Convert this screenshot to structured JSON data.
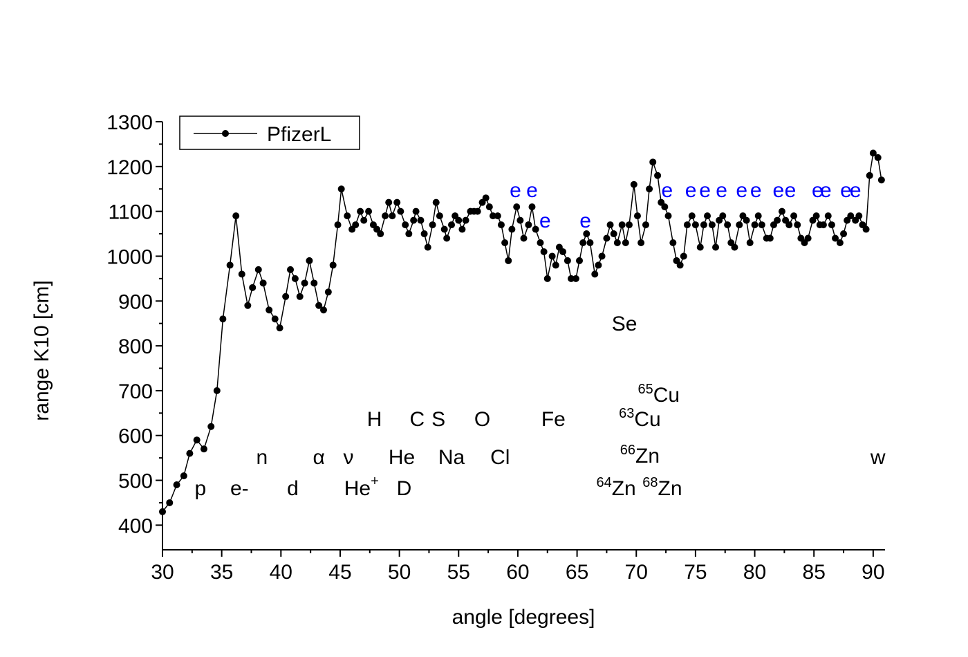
{
  "chart_data": {
    "type": "line",
    "x_label": "angle [degrees]",
    "y_label": "range K10 [cm]",
    "xlim": [
      30,
      91
    ],
    "ylim": [
      345,
      1300
    ],
    "xticks": [
      30,
      35,
      40,
      45,
      50,
      55,
      60,
      65,
      70,
      75,
      80,
      85,
      90
    ],
    "yticks": [
      400,
      500,
      600,
      700,
      800,
      900,
      1000,
      1100,
      1200,
      1300
    ],
    "xminorticks": [
      32.5,
      37.5,
      42.5,
      47.5,
      52.5,
      57.5,
      62.5,
      67.5,
      72.5,
      77.5,
      82.5,
      87.5
    ],
    "yminorticks": [
      450,
      550,
      650,
      750,
      850,
      950,
      1050,
      1150,
      1250
    ],
    "legend": "top-left",
    "x": [
      30,
      30.6,
      31.2,
      31.8,
      32.3,
      32.9,
      33.5,
      34.1,
      34.6,
      35.1,
      35.7,
      36.2,
      36.7,
      37.2,
      37.6,
      38.1,
      38.5,
      39,
      39.5,
      39.9,
      40.4,
      40.8,
      41.2,
      41.6,
      42,
      42.4,
      42.8,
      43.2,
      43.6,
      44,
      44.4,
      44.8,
      45.1,
      45.6,
      46,
      46.3,
      46.7,
      47,
      47.4,
      47.8,
      48.1,
      48.4,
      48.8,
      49.1,
      49.4,
      49.8,
      50.1,
      50.5,
      50.8,
      51.2,
      51.4,
      51.8,
      52.1,
      52.4,
      52.8,
      53.1,
      53.4,
      53.8,
      54,
      54.4,
      54.7,
      55,
      55.3,
      55.6,
      56,
      56.3,
      56.6,
      57,
      57.3,
      57.6,
      57.9,
      58.3,
      58.6,
      58.9,
      59.2,
      59.5,
      59.9,
      60.2,
      60.5,
      60.9,
      61.2,
      61.5,
      61.9,
      62.2,
      62.5,
      62.9,
      63.2,
      63.5,
      63.8,
      64.2,
      64.5,
      64.9,
      65.2,
      65.5,
      65.8,
      66.1,
      66.5,
      66.8,
      67.1,
      67.5,
      67.8,
      68.1,
      68.4,
      68.8,
      69.1,
      69.4,
      69.8,
      70.1,
      70.4,
      70.8,
      71.1,
      71.4,
      71.8,
      72.1,
      72.4,
      72.7,
      73.1,
      73.4,
      73.7,
      74,
      74.3,
      74.7,
      75,
      75.4,
      75.7,
      76,
      76.4,
      76.7,
      77,
      77.3,
      77.7,
      78,
      78.3,
      78.7,
      79,
      79.3,
      79.6,
      80,
      80.3,
      80.6,
      81,
      81.3,
      81.6,
      81.9,
      82.3,
      82.6,
      82.9,
      83.3,
      83.6,
      83.9,
      84.2,
      84.5,
      84.9,
      85.2,
      85.5,
      85.8,
      86.2,
      86.5,
      86.8,
      87.2,
      87.5,
      87.8,
      88.1,
      88.5,
      88.8,
      89.1,
      89.4,
      89.7,
      90,
      90.4,
      90.7
    ],
    "series": [
      {
        "name": "PfizerL",
        "color": "#000000",
        "values": [
          430,
          450,
          490,
          510,
          560,
          590,
          570,
          620,
          700,
          860,
          980,
          1090,
          960,
          890,
          930,
          970,
          940,
          880,
          860,
          840,
          910,
          970,
          950,
          910,
          940,
          990,
          940,
          890,
          880,
          920,
          980,
          1070,
          1150,
          1090,
          1060,
          1070,
          1100,
          1080,
          1100,
          1070,
          1060,
          1050,
          1090,
          1120,
          1090,
          1120,
          1100,
          1070,
          1050,
          1080,
          1100,
          1080,
          1050,
          1020,
          1070,
          1120,
          1090,
          1060,
          1040,
          1070,
          1090,
          1080,
          1060,
          1080,
          1100,
          1100,
          1100,
          1120,
          1130,
          1110,
          1090,
          1090,
          1070,
          1030,
          990,
          1060,
          1110,
          1080,
          1040,
          1070,
          1110,
          1060,
          1030,
          1010,
          950,
          1000,
          980,
          1020,
          1010,
          990,
          950,
          950,
          990,
          1030,
          1050,
          1030,
          960,
          980,
          1000,
          1040,
          1070,
          1050,
          1030,
          1070,
          1030,
          1070,
          1160,
          1090,
          1030,
          1070,
          1150,
          1210,
          1180,
          1120,
          1110,
          1090,
          1030,
          990,
          980,
          1000,
          1070,
          1090,
          1070,
          1020,
          1070,
          1090,
          1070,
          1020,
          1080,
          1090,
          1070,
          1030,
          1020,
          1070,
          1090,
          1080,
          1030,
          1070,
          1090,
          1070,
          1040,
          1040,
          1070,
          1080,
          1100,
          1080,
          1070,
          1090,
          1070,
          1040,
          1030,
          1040,
          1080,
          1090,
          1070,
          1070,
          1090,
          1070,
          1040,
          1030,
          1050,
          1080,
          1090,
          1080,
          1090,
          1070,
          1060,
          1180,
          1230,
          1220,
          1170
        ]
      }
    ],
    "annotation_groups": [
      {
        "color": "#000000",
        "items": [
          {
            "text": "p",
            "x": 33.2,
            "y": 484
          },
          {
            "text": "e-",
            "x": 36.5,
            "y": 484
          },
          {
            "text": "d",
            "x": 41,
            "y": 484
          },
          {
            "text": "n",
            "x": 38.4,
            "y": 553
          },
          {
            "text": "α",
            "x": 43.2,
            "y": 553
          },
          {
            "text": "ν",
            "x": 45.7,
            "y": 553
          },
          {
            "text": "He",
            "x": 50.2,
            "y": 553
          },
          {
            "text": "Na",
            "x": 54.4,
            "y": 553
          },
          {
            "text": "Cl",
            "x": 58.5,
            "y": 553
          },
          {
            "text": "He",
            "post": "+",
            "x": 46.8,
            "y": 484
          },
          {
            "text": "D",
            "x": 50.4,
            "y": 484
          },
          {
            "text": "H",
            "x": 47.9,
            "y": 638
          },
          {
            "text": "C",
            "x": 51.5,
            "y": 638
          },
          {
            "text": "S",
            "x": 53.3,
            "y": 638
          },
          {
            "text": "O",
            "x": 57,
            "y": 638
          },
          {
            "text": "Fe",
            "x": 63,
            "y": 638
          },
          {
            "text": "Se",
            "x": 69,
            "y": 851
          },
          {
            "pre": "65",
            "text": "Cu",
            "x": 71.9,
            "y": 692
          },
          {
            "pre": "63",
            "text": "Cu",
            "x": 70.3,
            "y": 638
          },
          {
            "pre": "66",
            "text": "Zn",
            "x": 70.3,
            "y": 556
          },
          {
            "pre": "64",
            "text": "Zn",
            "x": 68.3,
            "y": 484
          },
          {
            "pre": "68",
            "text": "Zn",
            "x": 72.2,
            "y": 484
          },
          {
            "text": "w",
            "x": 90.4,
            "y": 553
          }
        ]
      },
      {
        "color": "#0000ff",
        "items": [
          {
            "text": "e",
            "x": 59.8,
            "y": 1149
          },
          {
            "text": "e",
            "x": 61.2,
            "y": 1149
          },
          {
            "text": "e",
            "x": 62.3,
            "y": 1081
          },
          {
            "text": "e",
            "x": 65.7,
            "y": 1081
          },
          {
            "text": "e",
            "x": 72.6,
            "y": 1149
          },
          {
            "text": "e",
            "x": 74.6,
            "y": 1149
          },
          {
            "text": "e",
            "x": 75.8,
            "y": 1149
          },
          {
            "text": "e",
            "x": 77.2,
            "y": 1149
          },
          {
            "text": "e",
            "x": 78.9,
            "y": 1149
          },
          {
            "text": "e",
            "x": 80.1,
            "y": 1149
          },
          {
            "text": "e",
            "x": 82,
            "y": 1149
          },
          {
            "text": "e",
            "x": 83,
            "y": 1149
          },
          {
            "text": "e",
            "x": 85.3,
            "y": 1149
          },
          {
            "text": "e",
            "x": 86,
            "y": 1149
          },
          {
            "text": "e",
            "x": 87.7,
            "y": 1149
          },
          {
            "text": "e",
            "x": 88.5,
            "y": 1149
          }
        ]
      }
    ]
  }
}
